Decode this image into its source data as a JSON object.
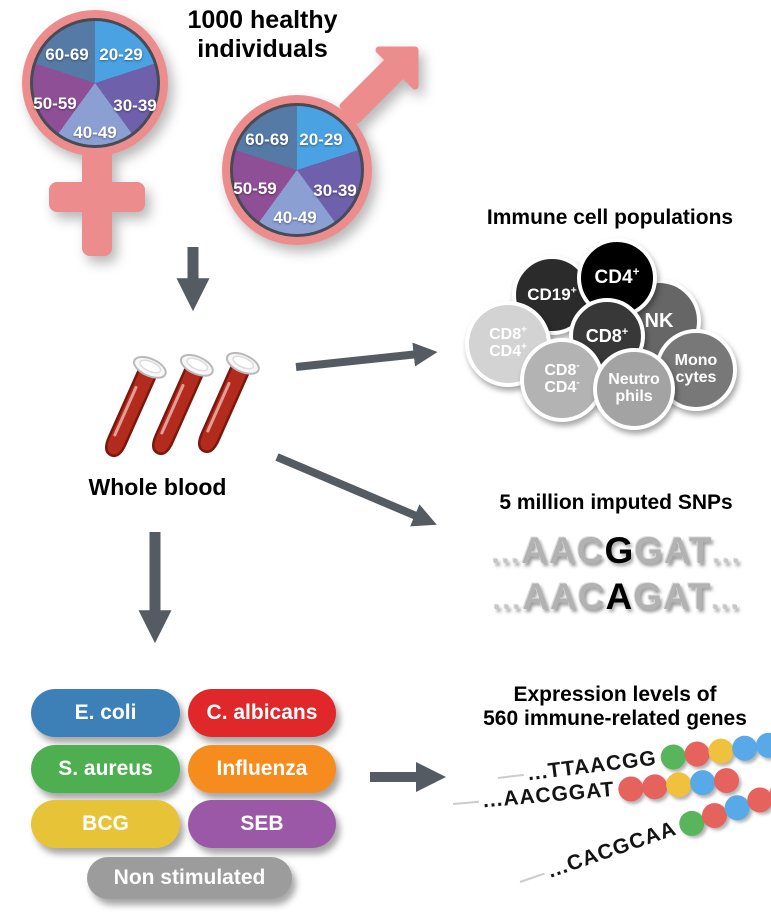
{
  "title": {
    "line1": "1000 healthy",
    "line2": "individuals"
  },
  "pies": {
    "description": "age distribution, five equal slices per gender symbol",
    "slices": [
      {
        "label": "20-29",
        "color": "#4aa2e2"
      },
      {
        "label": "30-39",
        "color": "#6f60ab"
      },
      {
        "label": "40-49",
        "color": "#8c9fd3"
      },
      {
        "label": "50-59",
        "color": "#8e4f96"
      },
      {
        "label": "60-69",
        "color": "#567aa6"
      }
    ],
    "ring_color": "#ed8c8c",
    "rim_color": "#454c56"
  },
  "whole_blood": {
    "label": "Whole blood",
    "tube_color": "#b22b1d"
  },
  "arrow_color": "#555b63",
  "immune": {
    "title": "Immune cell populations",
    "cells": [
      {
        "name": "nk",
        "color": "#666666",
        "lines": [
          {
            "t": "NK",
            "s": ""
          }
        ]
      },
      {
        "name": "cd19-pos",
        "color": "#2b2b2b",
        "lines": [
          {
            "t": "CD19",
            "s": "+"
          }
        ]
      },
      {
        "name": "cd4-pos",
        "color": "#000000",
        "lines": [
          {
            "t": "CD4",
            "s": "+"
          }
        ]
      },
      {
        "name": "cd8-pos",
        "color": "#383838",
        "lines": [
          {
            "t": "CD8",
            "s": "+"
          }
        ]
      },
      {
        "name": "cd8pos-cd4pos",
        "color": "#d3d3d3",
        "lines": [
          {
            "t": "CD8",
            "s": "+"
          },
          {
            "t": "CD4",
            "s": "+"
          }
        ]
      },
      {
        "name": "monocytes",
        "color": "#787878",
        "lines": [
          {
            "t": "Mono",
            "s": ""
          },
          {
            "t": "cytes",
            "s": ""
          }
        ]
      },
      {
        "name": "cd8neg-cd4neg",
        "color": "#b3b3b3",
        "lines": [
          {
            "t": "CD8",
            "s": "-"
          },
          {
            "t": "CD4",
            "s": "-"
          }
        ]
      },
      {
        "name": "neutrophils",
        "color": "#a3a3a3",
        "lines": [
          {
            "t": "Neutro",
            "s": ""
          },
          {
            "t": "phils",
            "s": ""
          }
        ]
      }
    ]
  },
  "snps": {
    "title": "5 million imputed SNPs",
    "rows": [
      {
        "dots_left": "...",
        "pre": "AAC",
        "variant": "G",
        "post": "GAT",
        "dots_right": "..."
      },
      {
        "dots_left": "...",
        "pre": "AAC",
        "variant": "A",
        "post": "GAT",
        "dots_right": "..."
      }
    ]
  },
  "stimuli": {
    "items": [
      {
        "label": "E. coli",
        "color": "#3d80b7"
      },
      {
        "label": "C. albicans",
        "color": "#e02729"
      },
      {
        "label": "S. aureus",
        "color": "#4daf50"
      },
      {
        "label": "Influenza",
        "color": "#f78c1e"
      },
      {
        "label": "BCG",
        "color": "#e7c437"
      },
      {
        "label": "SEB",
        "color": "#9b58a6"
      },
      {
        "label": "Non stimulated",
        "color": "#9c9c9c"
      }
    ]
  },
  "expression": {
    "title_line1": "Expression levels of",
    "title_line2": "560 immune-related genes",
    "dot_colors": {
      "green": "#59b55b",
      "red": "#e6625c",
      "yellow": "#f0c13c",
      "blue": "#57a9e8"
    },
    "strands": [
      {
        "seq": "...TTAACGG",
        "dots": [
          "green",
          "red",
          "yellow",
          "blue",
          "blue"
        ]
      },
      {
        "seq": "...AACGGAT",
        "dots": [
          "red",
          "red",
          "yellow",
          "blue",
          "red"
        ]
      },
      {
        "seq": "...CACGCAA",
        "dots": [
          "green",
          "red",
          "blue",
          "red",
          "red"
        ]
      }
    ]
  }
}
